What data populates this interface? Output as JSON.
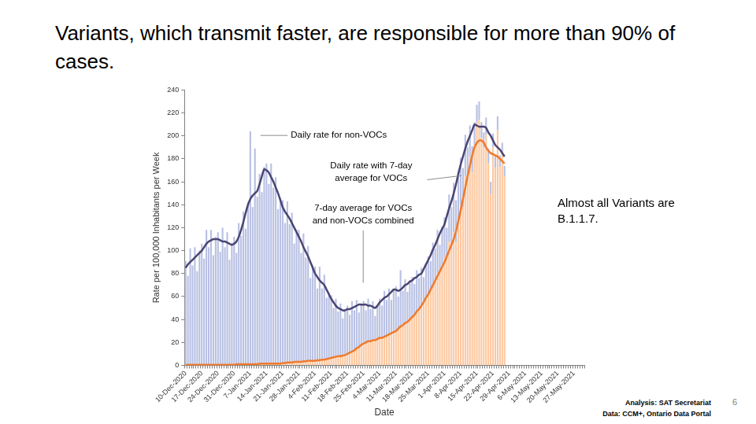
{
  "title": "Variants, which transmit faster, are responsible for more than 90% of cases.",
  "note": "Almost all Variants are B.1.1.7.",
  "analysis": "Analysis: SAT Secretariat",
  "data_source": "Data: CCM+, Ontario Data Portal",
  "page_number": 6,
  "chart_data": {
    "type": "bar",
    "x_label": "Date",
    "y_label": "Rate per 100,000 Inhabitants per Week",
    "categories": [
      "10-Dec-2020",
      null,
      null,
      null,
      null,
      null,
      null,
      "17-Dec-2020",
      null,
      null,
      null,
      null,
      null,
      null,
      "24-Dec-2020",
      null,
      null,
      null,
      null,
      null,
      null,
      "31-Dec-2020",
      null,
      null,
      null,
      null,
      null,
      null,
      "7-Jan-2021",
      null,
      null,
      null,
      null,
      null,
      null,
      "14-Jan-2021",
      null,
      null,
      null,
      null,
      null,
      null,
      "21-Jan-2021",
      null,
      null,
      null,
      null,
      null,
      null,
      "28-Jan-2021",
      null,
      null,
      null,
      null,
      null,
      null,
      "4-Feb-2021",
      null,
      null,
      null,
      null,
      null,
      null,
      "11-Feb-2021",
      null,
      null,
      null,
      null,
      null,
      null,
      "18-Feb-2021",
      null,
      null,
      null,
      null,
      null,
      null,
      "25-Feb-2021",
      null,
      null,
      null,
      null,
      null,
      null,
      "4-Mar-2021",
      null,
      null,
      null,
      null,
      null,
      null,
      "11-Mar-2021",
      null,
      null,
      null,
      null,
      null,
      null,
      "18-Mar-2021",
      null,
      null,
      null,
      null,
      null,
      null,
      "25-Mar-2021",
      null,
      null,
      null,
      null,
      null,
      null,
      "1-Apr-2021",
      null,
      null,
      null,
      null,
      null,
      null,
      "8-Apr-2021",
      null,
      null,
      null,
      null,
      null,
      null,
      "15-Apr-2021",
      null,
      null,
      null,
      null,
      null,
      null,
      "22-Apr-2021",
      null,
      null,
      null,
      null,
      null,
      null,
      "29-Apr-2021",
      null,
      null,
      null,
      null,
      null,
      null,
      "6-May-2021",
      null,
      null,
      null,
      null,
      null,
      null,
      "13-May-2021",
      null,
      null,
      null,
      null,
      null,
      null,
      "20-May-2021",
      null,
      null,
      null,
      null,
      null,
      null,
      "27-May-2021",
      null,
      null,
      null,
      null
    ],
    "series": [
      {
        "type": "bar",
        "color": "#fcc8a0",
        "values": [
          0.5,
          0.5,
          0.5,
          0.5,
          0.5,
          0.5,
          0.5,
          0.5,
          0.5,
          0.5,
          0.5,
          0.5,
          0.5,
          0.5,
          0.5,
          0.5,
          0.5,
          0.5,
          0.5,
          0.5,
          0.5,
          0.5,
          1,
          1,
          1,
          1,
          1,
          1,
          1,
          1,
          1,
          1,
          1.5,
          1.5,
          1.5,
          1.5,
          1.5,
          1.5,
          1.5,
          1.5,
          1.5,
          1.5,
          2,
          2,
          2.5,
          2.5,
          2.5,
          3,
          3,
          3,
          3,
          3.5,
          3.5,
          4,
          4,
          4,
          4,
          4.5,
          4.5,
          5,
          5,
          5.5,
          6,
          6.5,
          7,
          7.5,
          8,
          8,
          8.5,
          9,
          10,
          11,
          12,
          13,
          15,
          16,
          18,
          19,
          20,
          21,
          21,
          22,
          22,
          23,
          24,
          24,
          25,
          26,
          27,
          28,
          29,
          30,
          32,
          34,
          35,
          37,
          38,
          40,
          42,
          44,
          47,
          49,
          52,
          55,
          59,
          62,
          66,
          70,
          74,
          80,
          82,
          86,
          94,
          92,
          108,
          101,
          116,
          107,
          127,
          140,
          138,
          165,
          161,
          182,
          168,
          192,
          211,
          214,
          198,
          190,
          201,
          176,
          149,
          190,
          172,
          205,
          173,
          184,
          165,
          null,
          null,
          null,
          null,
          null,
          null,
          null,
          null,
          null,
          null,
          null,
          null,
          null,
          null,
          null,
          null,
          null,
          null,
          null,
          null,
          null,
          null,
          null,
          null,
          null,
          null,
          null,
          null,
          null,
          null,
          null,
          null,
          null,
          null
        ]
      },
      {
        "type": "bar",
        "color": "#b8c0e3",
        "values": [
          90.5,
          77.5,
          101.5,
          86.5,
          102.5,
          81.5,
          99.5,
          105.5,
          92.5,
          117.5,
          102.5,
          117.5,
          95.5,
          111.5,
          115.5,
          98.5,
          119.5,
          102.5,
          115.5,
          91.5,
          106.5,
          111.5,
          97,
          123,
          112,
          133,
          118,
          141,
          203,
          137,
          188,
          146,
          165.5,
          149.5,
          171.5,
          174.5,
          156.5,
          174.5,
          153.5,
          162.5,
          134.5,
          144.5,
          142,
          122,
          140.5,
          120.5,
          130.5,
          103,
          115,
          115,
          95,
          111.5,
          90.5,
          100,
          72,
          83,
          82,
          62.5,
          81.5,
          62,
          74,
          53.5,
          57,
          54.5,
          43,
          50.5,
          39,
          46,
          32.5,
          40,
          42,
          33,
          44,
          35,
          42,
          30,
          36,
          37,
          28,
          37,
          28,
          34,
          21,
          30,
          34,
          28,
          40,
          31,
          40,
          29,
          38,
          39,
          28,
          49,
          30,
          38,
          26,
          34,
          35,
          27,
          36,
          27,
          33,
          22,
          30,
          33,
          25,
          37,
          28,
          38,
          23,
          35,
          35,
          28,
          41,
          37,
          43,
          37,
          42,
          41,
          34,
          36,
          29,
          27,
          23,
          20,
          16,
          16,
          14,
          13,
          15,
          13,
          11,
          12,
          10,
          12,
          10,
          10,
          9,
          null,
          null,
          null,
          null,
          null,
          null,
          null,
          null,
          null,
          null,
          null,
          null,
          null,
          null,
          null,
          null,
          null,
          null,
          null,
          null,
          null,
          null,
          null,
          null,
          null,
          null,
          null,
          null,
          null,
          null,
          null,
          null,
          null,
          null
        ]
      },
      {
        "type": "line",
        "color": "#4a4573",
        "values": [
          85,
          88,
          90,
          92,
          94,
          96,
          98,
          100,
          103,
          106,
          108,
          109,
          110,
          110,
          110,
          109,
          108,
          108,
          107,
          106,
          105,
          106,
          108,
          112,
          118,
          125,
          133,
          140,
          145,
          148,
          150,
          152,
          158,
          165,
          171,
          170,
          168,
          164,
          160,
          155,
          150,
          144,
          138,
          134,
          131,
          128,
          124,
          120,
          116,
          112,
          108,
          103,
          99,
          95,
          90,
          85,
          80,
          77,
          74,
          72,
          70,
          66,
          62,
          58,
          55,
          52,
          50,
          49,
          48,
          48,
          49,
          49,
          50,
          51,
          52,
          53,
          53,
          53,
          53,
          52,
          52,
          51,
          50,
          52,
          55,
          57,
          59,
          60,
          62,
          64,
          66,
          66,
          65,
          66,
          68,
          70,
          71,
          73,
          74,
          76,
          77,
          79,
          80,
          84,
          88,
          92,
          96,
          101,
          105,
          110,
          115,
          119,
          123,
          130,
          137,
          143,
          150,
          158,
          167,
          175,
          182,
          189,
          195,
          200,
          205,
          210,
          209,
          208,
          208,
          208,
          207,
          203,
          200,
          196,
          192,
          190,
          188,
          185,
          182,
          null,
          null,
          null,
          null,
          null,
          null,
          null,
          null,
          null,
          null,
          null,
          null,
          null,
          null,
          null,
          null,
          null,
          null,
          null,
          null,
          null,
          null,
          null,
          null,
          null,
          null,
          null,
          null,
          null,
          null,
          null,
          null,
          null,
          null
        ]
      },
      {
        "type": "line",
        "color": "#f07a2c",
        "values": [
          0.5,
          0.5,
          0.5,
          0.5,
          0.5,
          0.5,
          0.5,
          0.5,
          0.5,
          0.5,
          0.5,
          0.5,
          0.5,
          0.5,
          0.5,
          0.5,
          0.5,
          0.5,
          0.5,
          0.5,
          0.5,
          0.5,
          1,
          1,
          1,
          1,
          1,
          1,
          1,
          1,
          1,
          1,
          1.5,
          1.5,
          1.5,
          1.5,
          1.5,
          1.5,
          1.5,
          1.5,
          1.5,
          1.5,
          2,
          2,
          2.5,
          2.5,
          2.5,
          3,
          3,
          3,
          3,
          3.5,
          3.5,
          4,
          4,
          4,
          4,
          4.5,
          4.5,
          5,
          5,
          5.5,
          6,
          6.5,
          7,
          7.5,
          8,
          8,
          8.5,
          9,
          10,
          11,
          12,
          13,
          15,
          16,
          18,
          19,
          20,
          21,
          21,
          22,
          22,
          23,
          24,
          24,
          25,
          26,
          27,
          28,
          29,
          30,
          32,
          34,
          35,
          37,
          38,
          40,
          42,
          44,
          47,
          49,
          52,
          55,
          59,
          62,
          66,
          70,
          74,
          78,
          82,
          86,
          90,
          95,
          100,
          105,
          110,
          117,
          126,
          135,
          145,
          155,
          165,
          174,
          183,
          190,
          194,
          196,
          196,
          194,
          190,
          187,
          185,
          184,
          183,
          182,
          180,
          178,
          176,
          null,
          null,
          null,
          null,
          null,
          null,
          null,
          null,
          null,
          null,
          null,
          null,
          null,
          null,
          null,
          null,
          null,
          null,
          null,
          null,
          null,
          null,
          null,
          null,
          null,
          null,
          null,
          null,
          null,
          null,
          null,
          null,
          null,
          null
        ]
      }
    ],
    "ylim": [
      0,
      240
    ],
    "yticks": [
      0,
      20,
      40,
      60,
      80,
      100,
      120,
      140,
      160,
      180,
      200,
      220,
      240
    ],
    "stacked": true,
    "grid": false,
    "annotations": [
      {
        "lines": [
          "Daily rate for non-VOCs"
        ]
      },
      {
        "lines": [
          "Daily rate with 7-day",
          "average for VOCs"
        ]
      },
      {
        "lines": [
          "7-day average for VOCs",
          "and non-VOCs combined"
        ]
      }
    ]
  }
}
